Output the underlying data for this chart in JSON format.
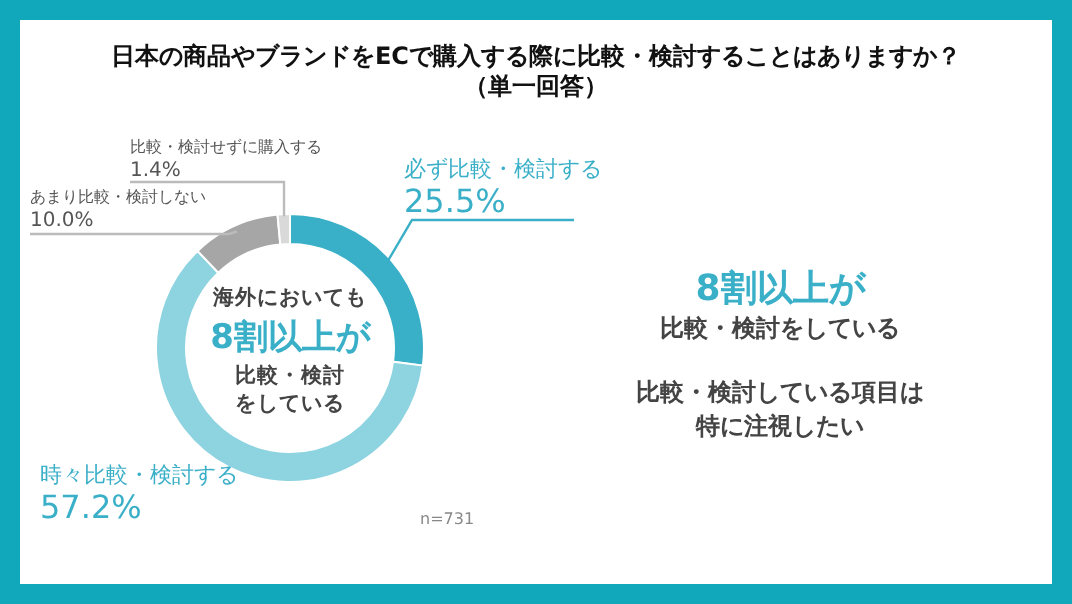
{
  "chart_data": {
    "type": "donut",
    "title": "日本の商品やブランドをECで購入する際に比較・検討することはありますか？",
    "subtitle": "（単一回答）",
    "categories": [
      "必ず比較・検討する",
      "時々比較・検討する",
      "あまり比較・検討しない",
      "比較・検討せずに購入する"
    ],
    "values": [
      25.5,
      57.2,
      10.0,
      1.4
    ],
    "colors": [
      "#3aafc8",
      "#8dd3e0",
      "#a6a6a6",
      "#d9d9d9"
    ],
    "value_labels": [
      "25.5%",
      "57.2%",
      "10.0%",
      "1.4%"
    ],
    "annotations": [
      "海外においても",
      "8割以上が",
      "比較・検討",
      "をしている",
      "8割以上が",
      "比較・検討をしている",
      "比較・検討している項目は",
      "特に注視したい",
      "n=731"
    ]
  }
}
